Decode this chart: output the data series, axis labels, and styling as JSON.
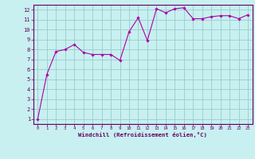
{
  "x": [
    0,
    1,
    2,
    3,
    4,
    5,
    6,
    7,
    8,
    9,
    10,
    11,
    12,
    13,
    14,
    15,
    16,
    17,
    18,
    19,
    20,
    21,
    22,
    23
  ],
  "y": [
    1.0,
    5.5,
    7.8,
    8.0,
    8.5,
    7.7,
    7.5,
    7.5,
    7.5,
    6.9,
    9.8,
    11.2,
    8.9,
    12.1,
    11.7,
    12.1,
    12.2,
    11.1,
    11.1,
    11.3,
    11.4,
    11.4,
    11.1,
    11.5
  ],
  "xlim": [
    -0.5,
    23.5
  ],
  "ylim": [
    0.5,
    12.5
  ],
  "yticks": [
    1,
    2,
    3,
    4,
    5,
    6,
    7,
    8,
    9,
    10,
    11,
    12
  ],
  "xticks": [
    0,
    1,
    2,
    3,
    4,
    5,
    6,
    7,
    8,
    9,
    10,
    11,
    12,
    13,
    14,
    15,
    16,
    17,
    18,
    19,
    20,
    21,
    22,
    23
  ],
  "xlabel": "Windchill (Refroidissement éolien,°C)",
  "line_color": "#aa00aa",
  "marker_color": "#aa00aa",
  "bg_color": "#c8f0f0",
  "grid_color": "#99cccc",
  "xlabel_color": "#660066",
  "tick_color": "#660066",
  "border_color": "#660066",
  "spine_color": "#660066"
}
